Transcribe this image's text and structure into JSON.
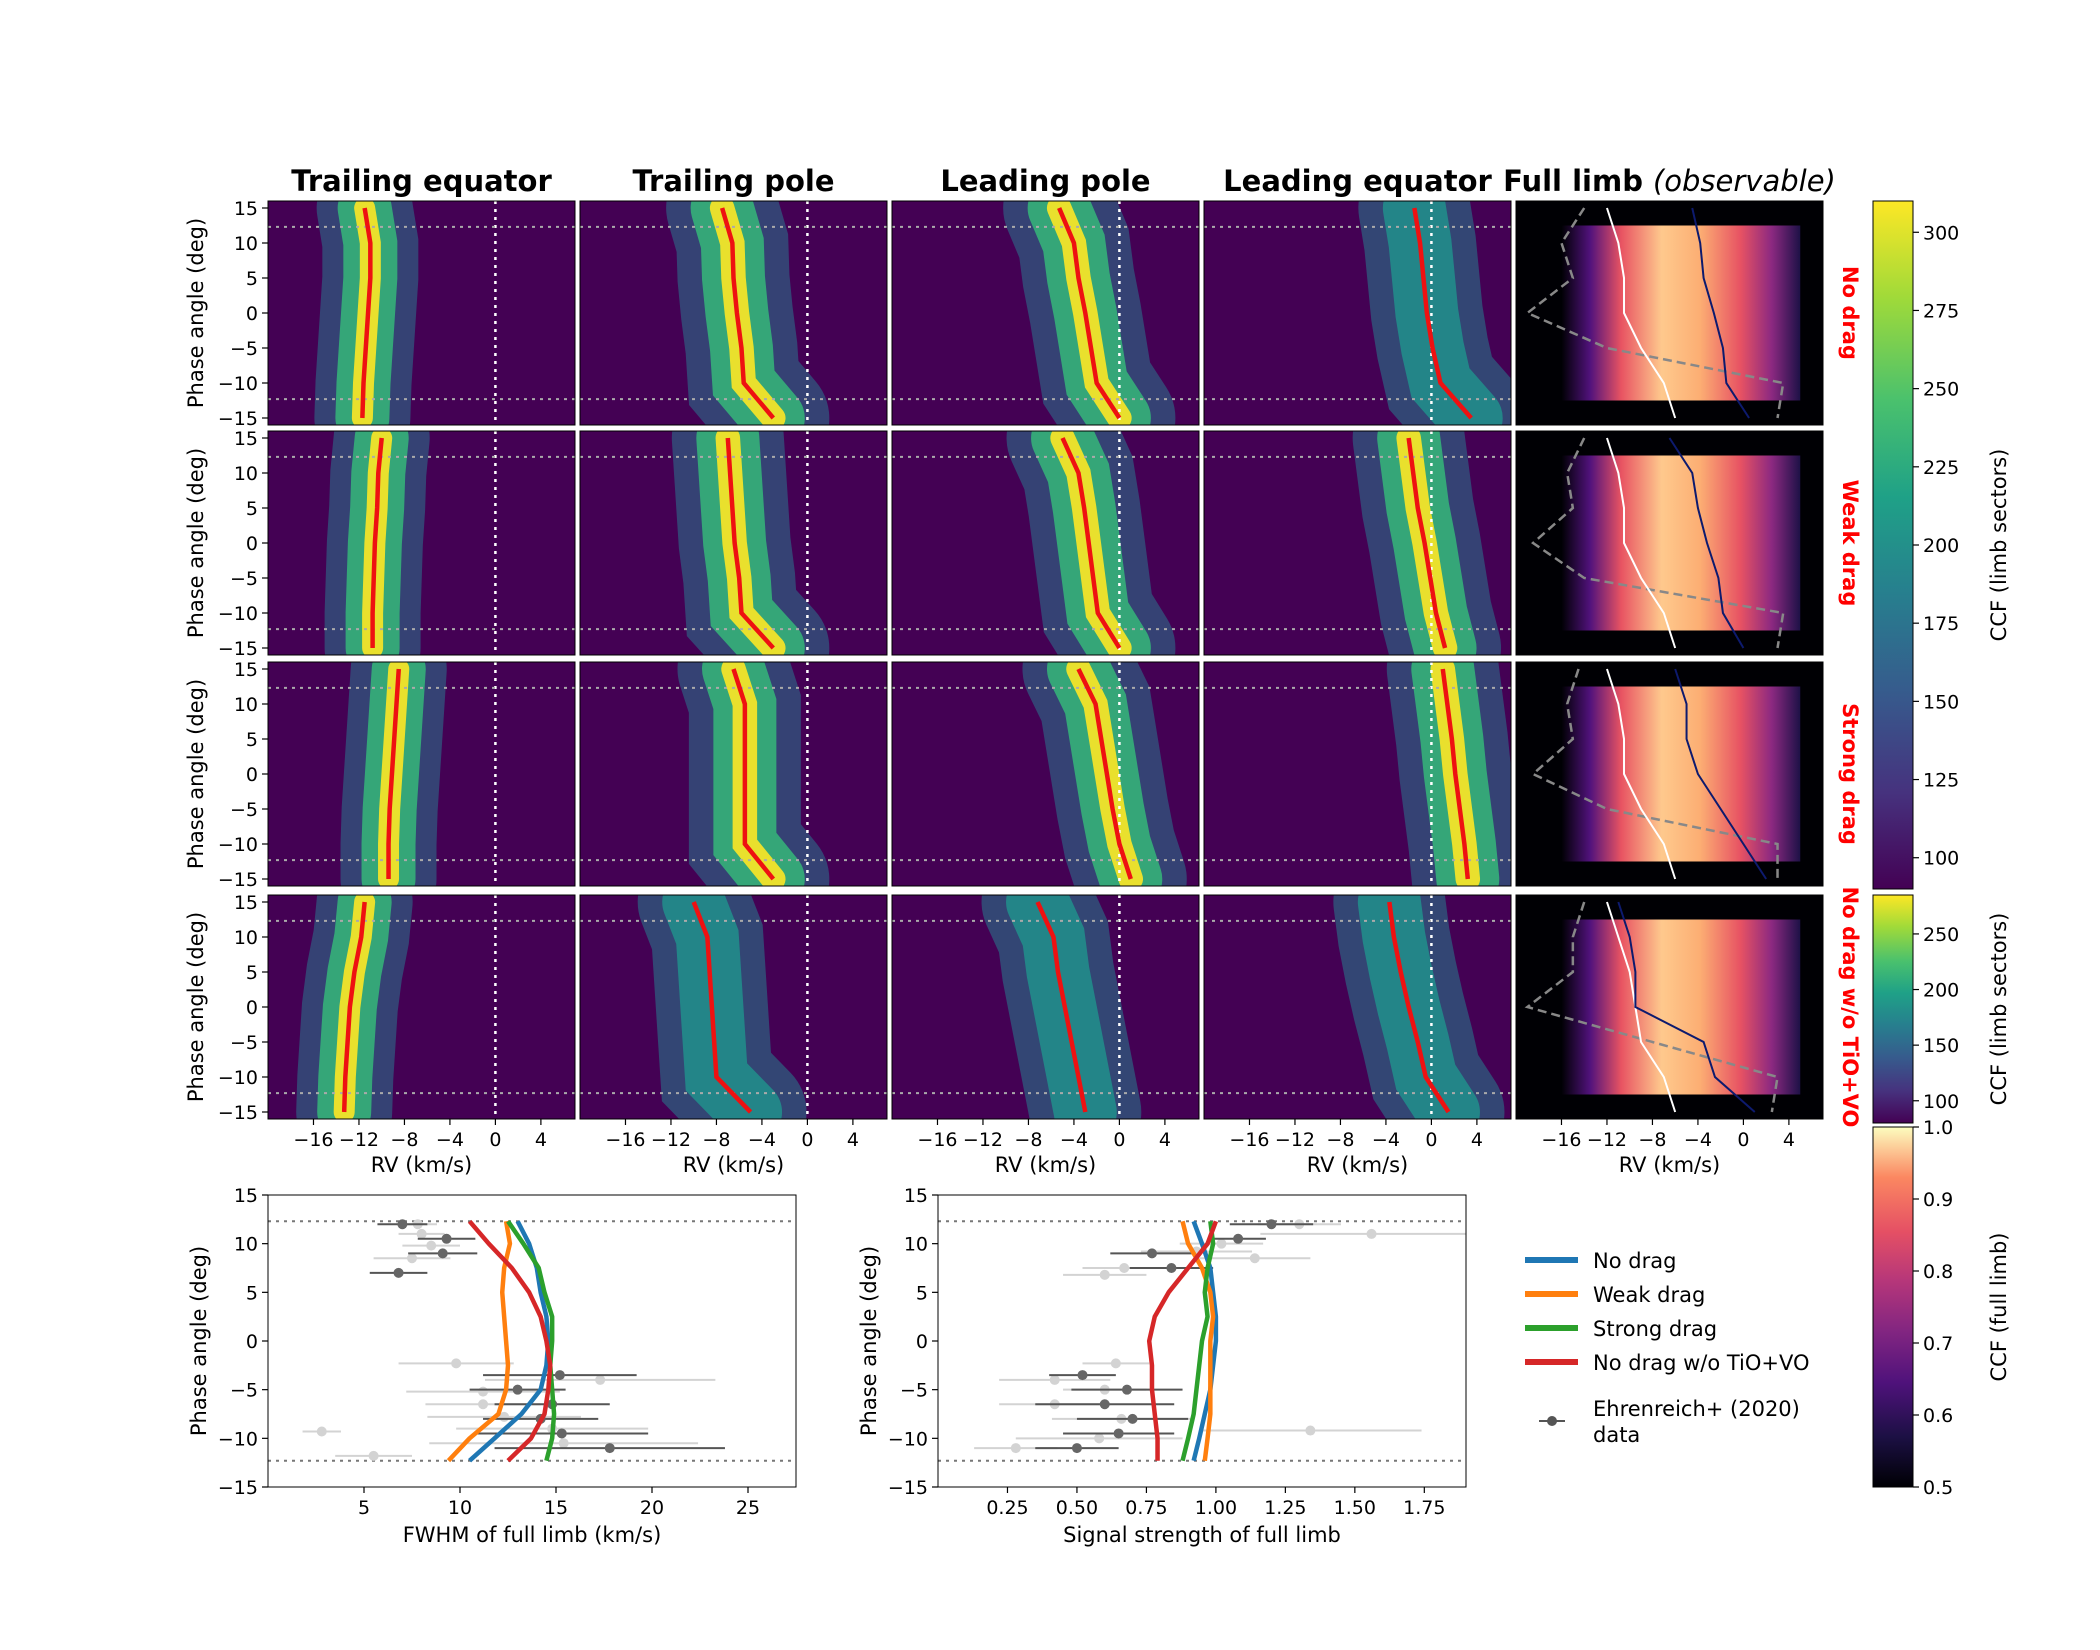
{
  "chart_data": [
    {
      "type": "heatmap",
      "panel": "ccf-maps-by-limb-sector",
      "columns": [
        "Trailing equator",
        "Trailing pole",
        "Leading pole",
        "Leading equator"
      ],
      "full_limb_title": "Full limb",
      "full_limb_subtitle": "(observable)",
      "rows": [
        "No drag",
        "Weak drag",
        "Strong drag",
        "No drag w/o TiO+VO"
      ],
      "xlabel": "RV (km/s)",
      "ylabel": "Phase angle (deg)",
      "xlim": [
        -20,
        7
      ],
      "ylim": [
        -16,
        16
      ],
      "xticks": [
        -16,
        -12,
        -8,
        -4,
        0,
        4
      ],
      "yticks": [
        -15,
        -10,
        -5,
        0,
        5,
        10,
        15
      ],
      "xtick_labels": [
        "−16",
        "−12",
        "−8",
        "−4",
        "0",
        "4"
      ],
      "ytick_labels": [
        "−15",
        "−10",
        "−5",
        "0",
        "5",
        "10",
        "15"
      ],
      "reference_lines": {
        "rv_zero": 0,
        "phase_limits": [
          -12.3,
          12.3
        ]
      },
      "colormap_sectors": "viridis",
      "colormap_full_limb": "magma",
      "peak_rv_tracks": {
        "phases": [
          15,
          10,
          5,
          0,
          -5,
          -10,
          -15
        ],
        "No drag": [
          [
            -11.5,
            -11,
            -11,
            -11.2,
            -11.4,
            -11.6,
            -11.7
          ],
          [
            -7.5,
            -6.6,
            -6.5,
            -6.2,
            -5.8,
            -5.6,
            -3.0
          ],
          [
            -5.3,
            -4.0,
            -3.6,
            -3.0,
            -2.5,
            -2.0,
            0.0
          ],
          [
            -1.5,
            -1.0,
            -0.7,
            -0.4,
            0.1,
            0.8,
            3.5
          ]
        ],
        "Weak drag": [
          [
            -10.0,
            -10.3,
            -10.4,
            -10.6,
            -10.7,
            -10.8,
            -10.8
          ],
          [
            -7.0,
            -6.8,
            -6.6,
            -6.4,
            -6.0,
            -5.8,
            -3.0
          ],
          [
            -5.0,
            -3.6,
            -3.1,
            -2.7,
            -2.3,
            -1.9,
            0.0
          ],
          [
            -2.0,
            -1.6,
            -1.2,
            -0.6,
            -0.1,
            0.4,
            1.2
          ]
        ],
        "Strong drag": [
          [
            -8.5,
            -8.7,
            -8.9,
            -9.1,
            -9.3,
            -9.4,
            -9.4
          ],
          [
            -6.5,
            -5.5,
            -5.5,
            -5.5,
            -5.5,
            -5.5,
            -3.0
          ],
          [
            -3.6,
            -2.1,
            -1.6,
            -1.1,
            -0.6,
            0.0,
            1.0
          ],
          [
            1.0,
            1.4,
            1.8,
            2.1,
            2.5,
            2.9,
            3.2
          ]
        ],
        "No drag w/o TiO+VO": [
          [
            -11.5,
            -11.8,
            -12.4,
            -12.8,
            -13.0,
            -13.2,
            -13.3
          ],
          [
            -10.0,
            -8.8,
            -8.6,
            -8.4,
            -8.2,
            -8.0,
            -5.0
          ],
          [
            -7.2,
            -5.8,
            -5.4,
            -4.8,
            -4.2,
            -3.6,
            -3.0
          ],
          [
            -3.7,
            -3.3,
            -2.7,
            -2.0,
            -1.2,
            -0.5,
            1.5
          ]
        ]
      },
      "full_limb_overlays": {
        "phases": [
          15,
          10,
          5,
          0,
          -5,
          -10,
          -15
        ],
        "solid_white": [
          [
            -12,
            -11,
            -10.5,
            -10.5,
            -9,
            -7,
            -6
          ],
          [
            -12,
            -11,
            -10.5,
            -10.5,
            -9,
            -7,
            -6
          ],
          [
            -12,
            -11,
            -10.5,
            -10.5,
            -9,
            -7,
            -6
          ],
          [
            -12,
            -11,
            -10,
            -9.5,
            -9,
            -7,
            -6
          ]
        ],
        "solid_navy": [
          [
            -4.5,
            -3.8,
            -3.5,
            -2.6,
            -1.8,
            -1.5,
            0.5
          ],
          [
            -6.5,
            -4.5,
            -4.0,
            -3.2,
            -2.2,
            -1.8,
            0.0
          ],
          [
            -6.0,
            -5.0,
            -5.0,
            -4.0,
            -2.0,
            0.0,
            2.0
          ],
          [
            -11.0,
            -10.0,
            -9.5,
            -9.5,
            -3.5,
            -2.5,
            1.0
          ]
        ],
        "dashed_gray": [
          [
            -14.0,
            -16.0,
            -15.0,
            -19.0,
            -12.0,
            3.5,
            3.0
          ],
          [
            -14.0,
            -15.5,
            -15.0,
            -18.5,
            -14.0,
            3.5,
            3.0
          ],
          [
            -14.5,
            -15.5,
            -15.0,
            -18.5,
            -12.0,
            3.0,
            3.0
          ],
          [
            -14.0,
            -15.0,
            -15.0,
            -19.0,
            -8.0,
            3.0,
            2.5
          ]
        ]
      },
      "colorbars": [
        {
          "label": "CCF (limb sectors)",
          "min": 90,
          "max": 310,
          "ticks": [
            100,
            125,
            150,
            175,
            200,
            225,
            250,
            275,
            300
          ],
          "colormap": "viridis"
        },
        {
          "label": "CCF (limb sectors)",
          "min": 80,
          "max": 285,
          "ticks": [
            100,
            150,
            200,
            250
          ],
          "colormap": "viridis"
        },
        {
          "label": "CCF (full limb)",
          "min": 0.5,
          "max": 1.0,
          "ticks": [
            0.5,
            0.6,
            0.7,
            0.8,
            0.9,
            1.0
          ],
          "tick_labels": [
            "0.5",
            "0.6",
            "0.7",
            "0.8",
            "0.9",
            "1.0"
          ],
          "colormap": "magma"
        }
      ]
    },
    {
      "type": "line",
      "panel": "fwhm",
      "xlabel": "FWHM of full limb (km/s)",
      "ylabel": "Phase angle (deg)",
      "xlim": [
        0,
        27.5
      ],
      "ylim": [
        -15,
        15
      ],
      "xticks": [
        5,
        10,
        15,
        20,
        25
      ],
      "yticks": [
        -15,
        -10,
        -5,
        0,
        5,
        10,
        15
      ],
      "ytick_labels": [
        "−15",
        "−10",
        "−5",
        "0",
        "5",
        "10",
        "15"
      ],
      "phase_limits": [
        -12.3,
        12.3
      ],
      "phase": [
        12.3,
        10,
        7.5,
        5,
        2.5,
        0,
        -2.5,
        -5,
        -7.5,
        -10,
        -12.3
      ],
      "series": [
        {
          "name": "No drag",
          "color": "#1f77b4",
          "values": [
            13.0,
            13.6,
            14.0,
            14.2,
            14.5,
            14.6,
            14.5,
            14.2,
            13.2,
            11.8,
            10.5
          ]
        },
        {
          "name": "Weak drag",
          "color": "#ff7f0e",
          "values": [
            12.4,
            12.6,
            12.3,
            12.2,
            12.3,
            12.4,
            12.5,
            12.4,
            12.0,
            10.5,
            9.4
          ]
        },
        {
          "name": "Strong drag",
          "color": "#2ca02c",
          "values": [
            12.5,
            13.3,
            14.1,
            14.4,
            14.8,
            14.8,
            14.7,
            14.8,
            14.9,
            14.8,
            14.5
          ]
        },
        {
          "name": "No drag w/o TiO+VO",
          "color": "#d62728",
          "values": [
            10.5,
            11.5,
            12.7,
            13.6,
            14.2,
            14.5,
            14.7,
            14.6,
            14.4,
            13.7,
            12.5
          ]
        }
      ],
      "observations": {
        "dark": [
          [
            7.0,
            12,
            1.3
          ],
          [
            9.3,
            10.5,
            1.5
          ],
          [
            9.1,
            9,
            1.8
          ],
          [
            6.8,
            7,
            1.5
          ],
          [
            15.2,
            -3.5,
            4.0
          ],
          [
            13.0,
            -5,
            2.5
          ],
          [
            14.8,
            -6.5,
            3.0
          ],
          [
            14.2,
            -8,
            3.0
          ],
          [
            15.3,
            -9.5,
            4.5
          ],
          [
            17.8,
            -11,
            6.0
          ]
        ],
        "light": [
          [
            7.8,
            12,
            1.0
          ],
          [
            8.0,
            11,
            1.2
          ],
          [
            8.5,
            9.8,
            1.5
          ],
          [
            7.5,
            8.5,
            2.0
          ],
          [
            9.8,
            -2.3,
            3.0
          ],
          [
            17.3,
            -4,
            6.0
          ],
          [
            11.2,
            -5.2,
            4.0
          ],
          [
            11.2,
            -6.5,
            3.0
          ],
          [
            12.3,
            -7.8,
            4.0
          ],
          [
            14.8,
            -9,
            5.0
          ],
          [
            2.8,
            -9.3,
            1.0
          ],
          [
            15.4,
            -10.5,
            7.0
          ],
          [
            5.5,
            -11.8,
            2.0
          ]
        ]
      }
    },
    {
      "type": "line",
      "panel": "signal-strength",
      "xlabel": "Signal strength of full limb",
      "ylabel": "Phase angle (deg)",
      "xlim": [
        0,
        1.9
      ],
      "ylim": [
        -15,
        15
      ],
      "xticks": [
        0.25,
        0.5,
        0.75,
        1.0,
        1.25,
        1.5,
        1.75
      ],
      "xtick_labels": [
        "0.25",
        "0.50",
        "0.75",
        "1.00",
        "1.25",
        "1.50",
        "1.75"
      ],
      "yticks": [
        -15,
        -10,
        -5,
        0,
        5,
        10,
        15
      ],
      "ytick_labels": [
        "−15",
        "−10",
        "−5",
        "0",
        "5",
        "10",
        "15"
      ],
      "phase_limits": [
        -12.3,
        12.3
      ],
      "phase": [
        12.3,
        10,
        7.5,
        5,
        2.5,
        0,
        -2.5,
        -5,
        -7.5,
        -10,
        -12.3
      ],
      "series": [
        {
          "name": "No drag",
          "color": "#1f77b4",
          "values": [
            0.92,
            0.95,
            0.98,
            0.99,
            1.0,
            1.0,
            0.99,
            0.98,
            0.96,
            0.94,
            0.92
          ]
        },
        {
          "name": "Weak drag",
          "color": "#ff7f0e",
          "values": [
            0.88,
            0.9,
            0.95,
            0.98,
            0.99,
            0.98,
            0.98,
            0.98,
            0.98,
            0.97,
            0.96
          ]
        },
        {
          "name": "Strong drag",
          "color": "#2ca02c",
          "values": [
            0.98,
            0.99,
            0.97,
            0.96,
            0.97,
            0.95,
            0.94,
            0.93,
            0.92,
            0.9,
            0.88
          ]
        },
        {
          "name": "No drag w/o TiO+VO",
          "color": "#d62728",
          "values": [
            1.0,
            0.97,
            0.9,
            0.83,
            0.78,
            0.76,
            0.77,
            0.77,
            0.78,
            0.79,
            0.79
          ]
        }
      ],
      "observations": {
        "dark": [
          [
            1.2,
            12,
            0.15
          ],
          [
            1.08,
            10.5,
            0.1
          ],
          [
            0.77,
            9,
            0.15
          ],
          [
            0.84,
            7.5,
            0.15
          ],
          [
            0.52,
            -3.5,
            0.12
          ],
          [
            0.68,
            -5,
            0.2
          ],
          [
            0.6,
            -6.5,
            0.25
          ],
          [
            0.7,
            -8,
            0.2
          ],
          [
            0.65,
            -9.5,
            0.2
          ],
          [
            0.5,
            -11,
            0.15
          ]
        ],
        "light": [
          [
            1.3,
            12,
            0.15
          ],
          [
            1.56,
            11,
            0.4
          ],
          [
            1.02,
            10,
            0.15
          ],
          [
            0.93,
            9.2,
            0.2
          ],
          [
            1.14,
            8.5,
            0.2
          ],
          [
            0.67,
            7.5,
            0.15
          ],
          [
            0.6,
            6.8,
            0.15
          ],
          [
            0.64,
            -2.3,
            0.12
          ],
          [
            0.42,
            -4,
            0.2
          ],
          [
            0.6,
            -5,
            0.15
          ],
          [
            0.42,
            -6.5,
            0.2
          ],
          [
            0.66,
            -8,
            0.25
          ],
          [
            1.34,
            -9.2,
            0.4
          ],
          [
            0.58,
            -10,
            0.3
          ],
          [
            0.28,
            -11,
            0.15
          ]
        ]
      }
    }
  ],
  "legend": {
    "entries": [
      "No drag",
      "Weak drag",
      "Strong drag",
      "No drag w/o TiO+VO"
    ],
    "colors": [
      "#1f77b4",
      "#ff7f0e",
      "#2ca02c",
      "#d62728"
    ],
    "data_label_line1": "Ehrenreich+ (2020)",
    "data_label_line2": "data",
    "placement": "bottom-right"
  }
}
